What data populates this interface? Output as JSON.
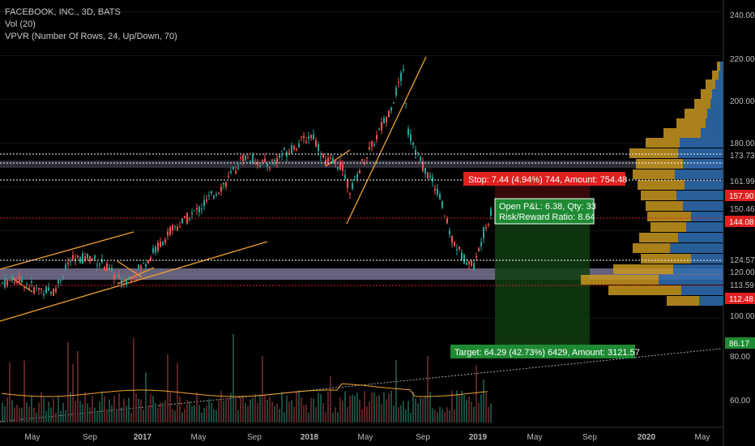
{
  "legend": {
    "symbol": "FACEBOOK, INC., 3D, BATS",
    "volume": "Vol (20)",
    "vpvr": "VPVR (Number Of Rows, 24, Up/Down, 70)"
  },
  "price_axis": {
    "ticks": [
      "240.00",
      "220.00",
      "200.00",
      "180.00",
      "173.73",
      "161.99",
      "157.90",
      "150.46",
      "144.08",
      "124.57",
      "120.00",
      "113.59",
      "112.48",
      "100.00",
      "86.17",
      "80.00",
      "60.00"
    ],
    "badges": [
      {
        "label": "157.90",
        "color": "#e0201f"
      },
      {
        "label": "144.08",
        "color": "#e0201f"
      },
      {
        "label": "112.48",
        "color": "#e0201f"
      },
      {
        "label": "86.17",
        "color": "#1e8a33"
      }
    ]
  },
  "time_axis": {
    "labels": [
      "May",
      "Sep",
      "2017",
      "May",
      "Sep",
      "2018",
      "May",
      "Sep",
      "2019",
      "May",
      "Sep",
      "2020",
      "May"
    ]
  },
  "position": {
    "stop_label": "Stop: 7.44 (4.94%) 744, Amount: 754.48",
    "open_pnl": "Open P&L: 6.38, Qty: 33",
    "risk_reward": "Risk/Reward Ratio: 8.64",
    "target_label": "Target: 64.29 (42.73%) 6429, Amount: 3121.57"
  },
  "colors": {
    "up": "#26a69a",
    "down": "#ef5350",
    "stop": "#e0201f",
    "target": "#1e8a33",
    "trendline": "#f0a030",
    "zone": "#b8b0e0",
    "vpvr_up": "#2f6fb5",
    "vpvr_down": "#c8961e"
  }
}
